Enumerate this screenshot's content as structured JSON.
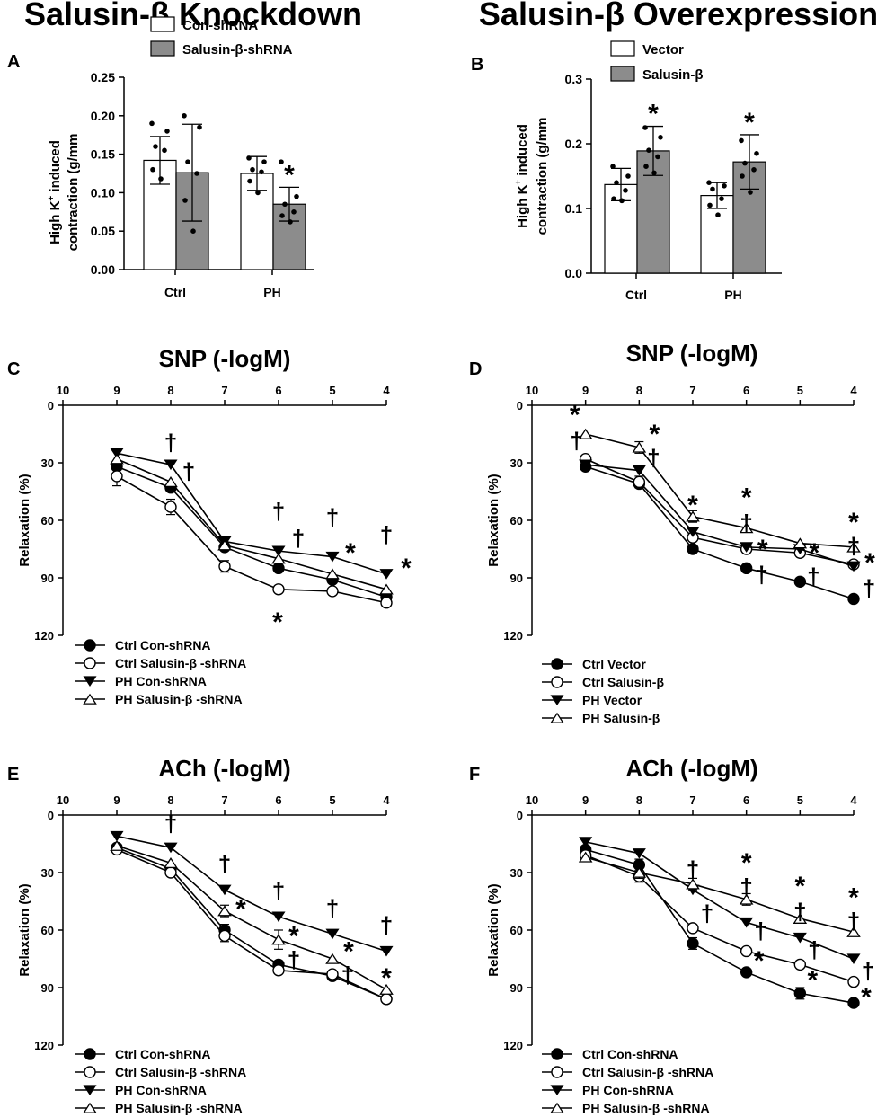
{
  "column_titles": {
    "left": "Salusin-β Knockdown",
    "right": "Salusin-β Overexpression"
  },
  "colors": {
    "bar_control": "#ffffff",
    "bar_treated": "#8c8c8c",
    "stroke": "#000000"
  },
  "chart_data": [
    {
      "id": "A",
      "panel_label": "A",
      "type": "bar",
      "ylabel_line1_pre": "High K",
      "ylabel_line1_sup": "+",
      "ylabel_line1_post": " induced",
      "ylabel_line2": "contraction (g/mm",
      "ylim": [
        0,
        0.25
      ],
      "yticks": [
        0,
        0.05,
        0.1,
        0.15,
        0.2,
        0.25
      ],
      "ytick_labels": [
        "0.00",
        "0.05",
        "0.10",
        "0.15",
        "0.20",
        "0.25"
      ],
      "categories": [
        "Ctrl",
        "PH"
      ],
      "series": [
        {
          "name": "Con-shRNA",
          "fill": "#ffffff",
          "values": [
            0.142,
            0.125
          ],
          "err": [
            0.031,
            0.022
          ],
          "points": [
            [
              0.19,
              0.18,
              0.16,
              0.155,
              0.13,
              0.118
            ],
            [
              0.145,
              0.14,
              0.13,
              0.127,
              0.115,
              0.1
            ]
          ]
        },
        {
          "name": "Salusin-β-shRNA",
          "fill": "#8c8c8c",
          "values": [
            0.126,
            0.085
          ],
          "err": [
            0.063,
            0.022
          ],
          "points": [
            [
              0.2,
              0.185,
              0.14,
              0.125,
              0.09,
              0.05
            ],
            [
              0.14,
              0.095,
              0.085,
              0.075,
              0.07,
              0.062
            ]
          ]
        }
      ],
      "annotations": [
        {
          "category": 1,
          "series": 1,
          "symbol": "*"
        }
      ]
    },
    {
      "id": "B",
      "panel_label": "B",
      "type": "bar",
      "ylabel_line1_pre": "High K",
      "ylabel_line1_sup": "+",
      "ylabel_line1_post": " induced",
      "ylabel_line2": "contraction (g/mm",
      "ylim": [
        0,
        0.3
      ],
      "yticks": [
        0,
        0.1,
        0.2,
        0.3
      ],
      "ytick_labels": [
        "0.0",
        "0.1",
        "0.2",
        "0.3"
      ],
      "categories": [
        "Ctrl",
        "PH"
      ],
      "series": [
        {
          "name": "Vector",
          "fill": "#ffffff",
          "values": [
            0.137,
            0.12
          ],
          "err": [
            0.025,
            0.02
          ],
          "points": [
            [
              0.165,
              0.15,
              0.14,
              0.128,
              0.115,
              0.112
            ],
            [
              0.14,
              0.135,
              0.13,
              0.115,
              0.105,
              0.09
            ]
          ]
        },
        {
          "name": "Salusin-β",
          "fill": "#8c8c8c",
          "values": [
            0.189,
            0.172
          ],
          "err": [
            0.038,
            0.042
          ],
          "points": [
            [
              0.225,
              0.21,
              0.19,
              0.18,
              0.165,
              0.155
            ],
            [
              0.205,
              0.185,
              0.17,
              0.16,
              0.15,
              0.125
            ]
          ]
        }
      ],
      "annotations": [
        {
          "category": 0,
          "series": 1,
          "symbol": "*"
        },
        {
          "category": 1,
          "series": 1,
          "symbol": "*"
        }
      ]
    },
    {
      "id": "C",
      "panel_label": "C",
      "type": "line",
      "title": "SNP (-logM)",
      "ylabel": "Relaxation (%)",
      "xlim": [
        10,
        4
      ],
      "xticks": [
        10,
        9,
        8,
        7,
        6,
        5,
        4
      ],
      "xtick_labels": [
        "10",
        "9",
        "8",
        "7",
        "6",
        "5",
        "4"
      ],
      "ylim": [
        0,
        120
      ],
      "yticks": [
        0,
        30,
        60,
        90,
        120
      ],
      "ytick_labels": [
        "0",
        "30",
        "60",
        "90",
        "120"
      ],
      "x": [
        9,
        8,
        7,
        6,
        5,
        4
      ],
      "series": [
        {
          "name": "Ctrl Con-shRNA",
          "marker": "circle-filled",
          "values": [
            32,
            43,
            74,
            85,
            91,
            100
          ],
          "err": [
            2,
            2,
            2,
            2,
            2,
            2
          ]
        },
        {
          "name": "Ctrl Salusin-β -shRNA",
          "marker": "circle-open",
          "values": [
            37,
            53,
            84,
            96,
            97,
            103
          ],
          "err": [
            5,
            4,
            3,
            2,
            2,
            2
          ]
        },
        {
          "name": "PH Con-shRNA",
          "marker": "triangle-down-filled",
          "values": [
            25,
            31,
            71,
            76,
            79,
            88
          ],
          "err": [
            2,
            2,
            2,
            2,
            2,
            2
          ]
        },
        {
          "name": "PH Salusin-β -shRNA",
          "marker": "triangle-up-open",
          "values": [
            28,
            40,
            73,
            80,
            88,
            96
          ],
          "err": [
            2,
            2,
            2,
            5,
            2,
            2
          ]
        }
      ],
      "annotations": [
        {
          "x": 8,
          "y": 18,
          "dx": 0,
          "symbol": "†"
        },
        {
          "x": 8,
          "y": 33,
          "dx": 20,
          "symbol": "†"
        },
        {
          "x": 6,
          "y": 54,
          "dx": 0,
          "symbol": "†"
        },
        {
          "x": 6,
          "y": 68,
          "dx": 22,
          "symbol": "†"
        },
        {
          "x": 6,
          "y": 112,
          "dx": -1,
          "symbol": "*"
        },
        {
          "x": 5,
          "y": 57,
          "dx": 0,
          "symbol": "†"
        },
        {
          "x": 5,
          "y": 76,
          "dx": 20,
          "symbol": "*"
        },
        {
          "x": 4,
          "y": 66,
          "dx": 0,
          "symbol": "†"
        },
        {
          "x": 4,
          "y": 84,
          "dx": 22,
          "symbol": "*"
        }
      ]
    },
    {
      "id": "D",
      "panel_label": "D",
      "type": "line",
      "title": "SNP (-logM)",
      "ylabel": "Relaxation (%)",
      "xlim": [
        10,
        4
      ],
      "xticks": [
        10,
        9,
        8,
        7,
        6,
        5,
        4
      ],
      "xtick_labels": [
        "10",
        "9",
        "8",
        "7",
        "6",
        "5",
        "4"
      ],
      "ylim": [
        0,
        120
      ],
      "yticks": [
        0,
        30,
        60,
        90,
        120
      ],
      "ytick_labels": [
        "0",
        "30",
        "60",
        "90",
        "120"
      ],
      "x": [
        9,
        8,
        7,
        6,
        5,
        4
      ],
      "series": [
        {
          "name": "Ctrl Vector",
          "marker": "circle-filled",
          "values": [
            32,
            41,
            75,
            85,
            92,
            101
          ],
          "err": [
            2,
            2,
            2,
            2,
            2,
            2
          ]
        },
        {
          "name": "Ctrl Salusin-β",
          "marker": "circle-open",
          "values": [
            28,
            40,
            69,
            75,
            77,
            83
          ],
          "err": [
            2,
            3,
            2,
            2,
            2,
            2
          ]
        },
        {
          "name": "PH Vector",
          "marker": "triangle-down-filled",
          "values": [
            31,
            34,
            66,
            74,
            75,
            84
          ],
          "err": [
            2,
            2,
            2,
            2,
            2,
            2
          ]
        },
        {
          "name": "PH Salusin-β",
          "marker": "triangle-up-open",
          "values": [
            15,
            22,
            58,
            64,
            72,
            74
          ],
          "err": [
            2,
            3,
            3,
            2,
            2,
            2
          ]
        }
      ],
      "annotations": [
        {
          "x": 9,
          "y": 4,
          "dx": -12,
          "symbol": "*"
        },
        {
          "x": 9,
          "y": 17,
          "dx": -10,
          "symbol": "†"
        },
        {
          "x": 8,
          "y": 14,
          "dx": 17,
          "symbol": "*"
        },
        {
          "x": 8,
          "y": 26,
          "dx": 16,
          "symbol": "†"
        },
        {
          "x": 7,
          "y": 51,
          "dx": 0,
          "symbol": "*"
        },
        {
          "x": 6,
          "y": 47,
          "dx": 0,
          "symbol": "*"
        },
        {
          "x": 6,
          "y": 60,
          "dx": 0,
          "symbol": "†"
        },
        {
          "x": 6,
          "y": 74,
          "dx": 18,
          "symbol": "*"
        },
        {
          "x": 6,
          "y": 87,
          "dx": 17,
          "symbol": "†"
        },
        {
          "x": 5,
          "y": 76,
          "dx": 16,
          "symbol": "*"
        },
        {
          "x": 5,
          "y": 88,
          "dx": 15,
          "symbol": "†"
        },
        {
          "x": 4,
          "y": 60,
          "dx": 0,
          "symbol": "*"
        },
        {
          "x": 4,
          "y": 72,
          "dx": 0,
          "symbol": "†"
        },
        {
          "x": 4,
          "y": 81,
          "dx": 18,
          "symbol": "*"
        },
        {
          "x": 4,
          "y": 94,
          "dx": 17,
          "symbol": "†"
        }
      ]
    },
    {
      "id": "E",
      "panel_label": "E",
      "type": "line",
      "title": "ACh (-logM)",
      "ylabel": "Relaxation (%)",
      "xlim": [
        10,
        4
      ],
      "xticks": [
        10,
        9,
        8,
        7,
        6,
        5,
        4
      ],
      "xtick_labels": [
        "10",
        "9",
        "8",
        "7",
        "6",
        "5",
        "4"
      ],
      "ylim": [
        0,
        120
      ],
      "yticks": [
        0,
        30,
        60,
        90,
        120
      ],
      "ytick_labels": [
        "0",
        "30",
        "60",
        "90",
        "120"
      ],
      "x": [
        9,
        8,
        7,
        6,
        5,
        4
      ],
      "series": [
        {
          "name": "Ctrl Con-shRNA",
          "marker": "circle-filled",
          "values": [
            17,
            28,
            60,
            78,
            84,
            96
          ],
          "err": [
            2,
            2,
            3,
            2,
            2,
            2
          ]
        },
        {
          "name": "Ctrl Salusin-β -shRNA",
          "marker": "circle-open",
          "values": [
            18,
            30,
            63,
            81,
            83,
            96
          ],
          "err": [
            2,
            2,
            3,
            2,
            2,
            2
          ]
        },
        {
          "name": "PH Con-shRNA",
          "marker": "triangle-down-filled",
          "values": [
            11,
            17,
            39,
            53,
            62,
            71
          ],
          "err": [
            2,
            2,
            2,
            2,
            2,
            2
          ]
        },
        {
          "name": "PH Salusin-β -shRNA",
          "marker": "triangle-up-open",
          "values": [
            16,
            25,
            50,
            65,
            75,
            91
          ],
          "err": [
            2,
            2,
            3,
            5,
            2,
            2
          ]
        }
      ],
      "annotations": [
        {
          "x": 8,
          "y": 3,
          "dx": 0,
          "symbol": "†"
        },
        {
          "x": 7,
          "y": 24,
          "dx": 0,
          "symbol": "†"
        },
        {
          "x": 7,
          "y": 48,
          "dx": 18,
          "symbol": "*"
        },
        {
          "x": 6,
          "y": 38,
          "dx": 0,
          "symbol": "†"
        },
        {
          "x": 6,
          "y": 62,
          "dx": 17,
          "symbol": "*"
        },
        {
          "x": 6,
          "y": 74,
          "dx": 17,
          "symbol": "†"
        },
        {
          "x": 5,
          "y": 47,
          "dx": 0,
          "symbol": "†"
        },
        {
          "x": 5,
          "y": 70,
          "dx": 18,
          "symbol": "*"
        },
        {
          "x": 5,
          "y": 82,
          "dx": 17,
          "symbol": "†"
        },
        {
          "x": 4,
          "y": 56,
          "dx": 0,
          "symbol": "†"
        },
        {
          "x": 4,
          "y": 84,
          "dx": 0,
          "symbol": "*"
        }
      ]
    },
    {
      "id": "F",
      "panel_label": "F",
      "type": "line",
      "title": "ACh (-logM)",
      "ylabel": "Relaxation (%)",
      "xlim": [
        10,
        4
      ],
      "xticks": [
        10,
        9,
        8,
        7,
        6,
        5,
        4
      ],
      "xtick_labels": [
        "10",
        "9",
        "8",
        "7",
        "6",
        "5",
        "4"
      ],
      "ylim": [
        0,
        120
      ],
      "yticks": [
        0,
        30,
        60,
        90,
        120
      ],
      "ytick_labels": [
        "0",
        "30",
        "60",
        "90",
        "120"
      ],
      "x": [
        9,
        8,
        7,
        6,
        5,
        4
      ],
      "series": [
        {
          "name": "Ctrl Con-shRNA",
          "marker": "circle-filled",
          "values": [
            18,
            26,
            67,
            82,
            93,
            98
          ],
          "err": [
            2,
            3,
            3,
            2,
            3,
            2
          ]
        },
        {
          "name": "Ctrl Salusin-β -shRNA",
          "marker": "circle-open",
          "values": [
            21,
            32,
            59,
            71,
            78,
            87
          ],
          "err": [
            2,
            3,
            2,
            2,
            2,
            2
          ]
        },
        {
          "name": "PH Con-shRNA",
          "marker": "triangle-down-filled",
          "values": [
            14,
            20,
            39,
            56,
            64,
            75
          ],
          "err": [
            2,
            2,
            2,
            2,
            2,
            2
          ]
        },
        {
          "name": "PH Salusin-β -shRNA",
          "marker": "triangle-up-open",
          "values": [
            22,
            30,
            36,
            44,
            54,
            61
          ],
          "err": [
            2,
            3,
            3,
            3,
            2,
            2
          ]
        }
      ],
      "annotations": [
        {
          "x": 7,
          "y": 27,
          "dx": 0,
          "symbol": "†"
        },
        {
          "x": 7,
          "y": 50,
          "dx": 16,
          "symbol": "†"
        },
        {
          "x": 6,
          "y": 24,
          "dx": 0,
          "symbol": "*"
        },
        {
          "x": 6,
          "y": 36,
          "dx": 0,
          "symbol": "†"
        },
        {
          "x": 6,
          "y": 59,
          "dx": 16,
          "symbol": "†"
        },
        {
          "x": 6,
          "y": 75,
          "dx": 14,
          "symbol": "*"
        },
        {
          "x": 5,
          "y": 36,
          "dx": 0,
          "symbol": "*"
        },
        {
          "x": 5,
          "y": 49,
          "dx": 0,
          "symbol": "†"
        },
        {
          "x": 5,
          "y": 69,
          "dx": 16,
          "symbol": "†"
        },
        {
          "x": 5,
          "y": 85,
          "dx": 14,
          "symbol": "*"
        },
        {
          "x": 4,
          "y": 42,
          "dx": 0,
          "symbol": "*"
        },
        {
          "x": 4,
          "y": 54,
          "dx": 0,
          "symbol": "†"
        },
        {
          "x": 4,
          "y": 80,
          "dx": 16,
          "symbol": "†"
        },
        {
          "x": 4,
          "y": 94,
          "dx": 14,
          "symbol": "*"
        }
      ]
    }
  ]
}
